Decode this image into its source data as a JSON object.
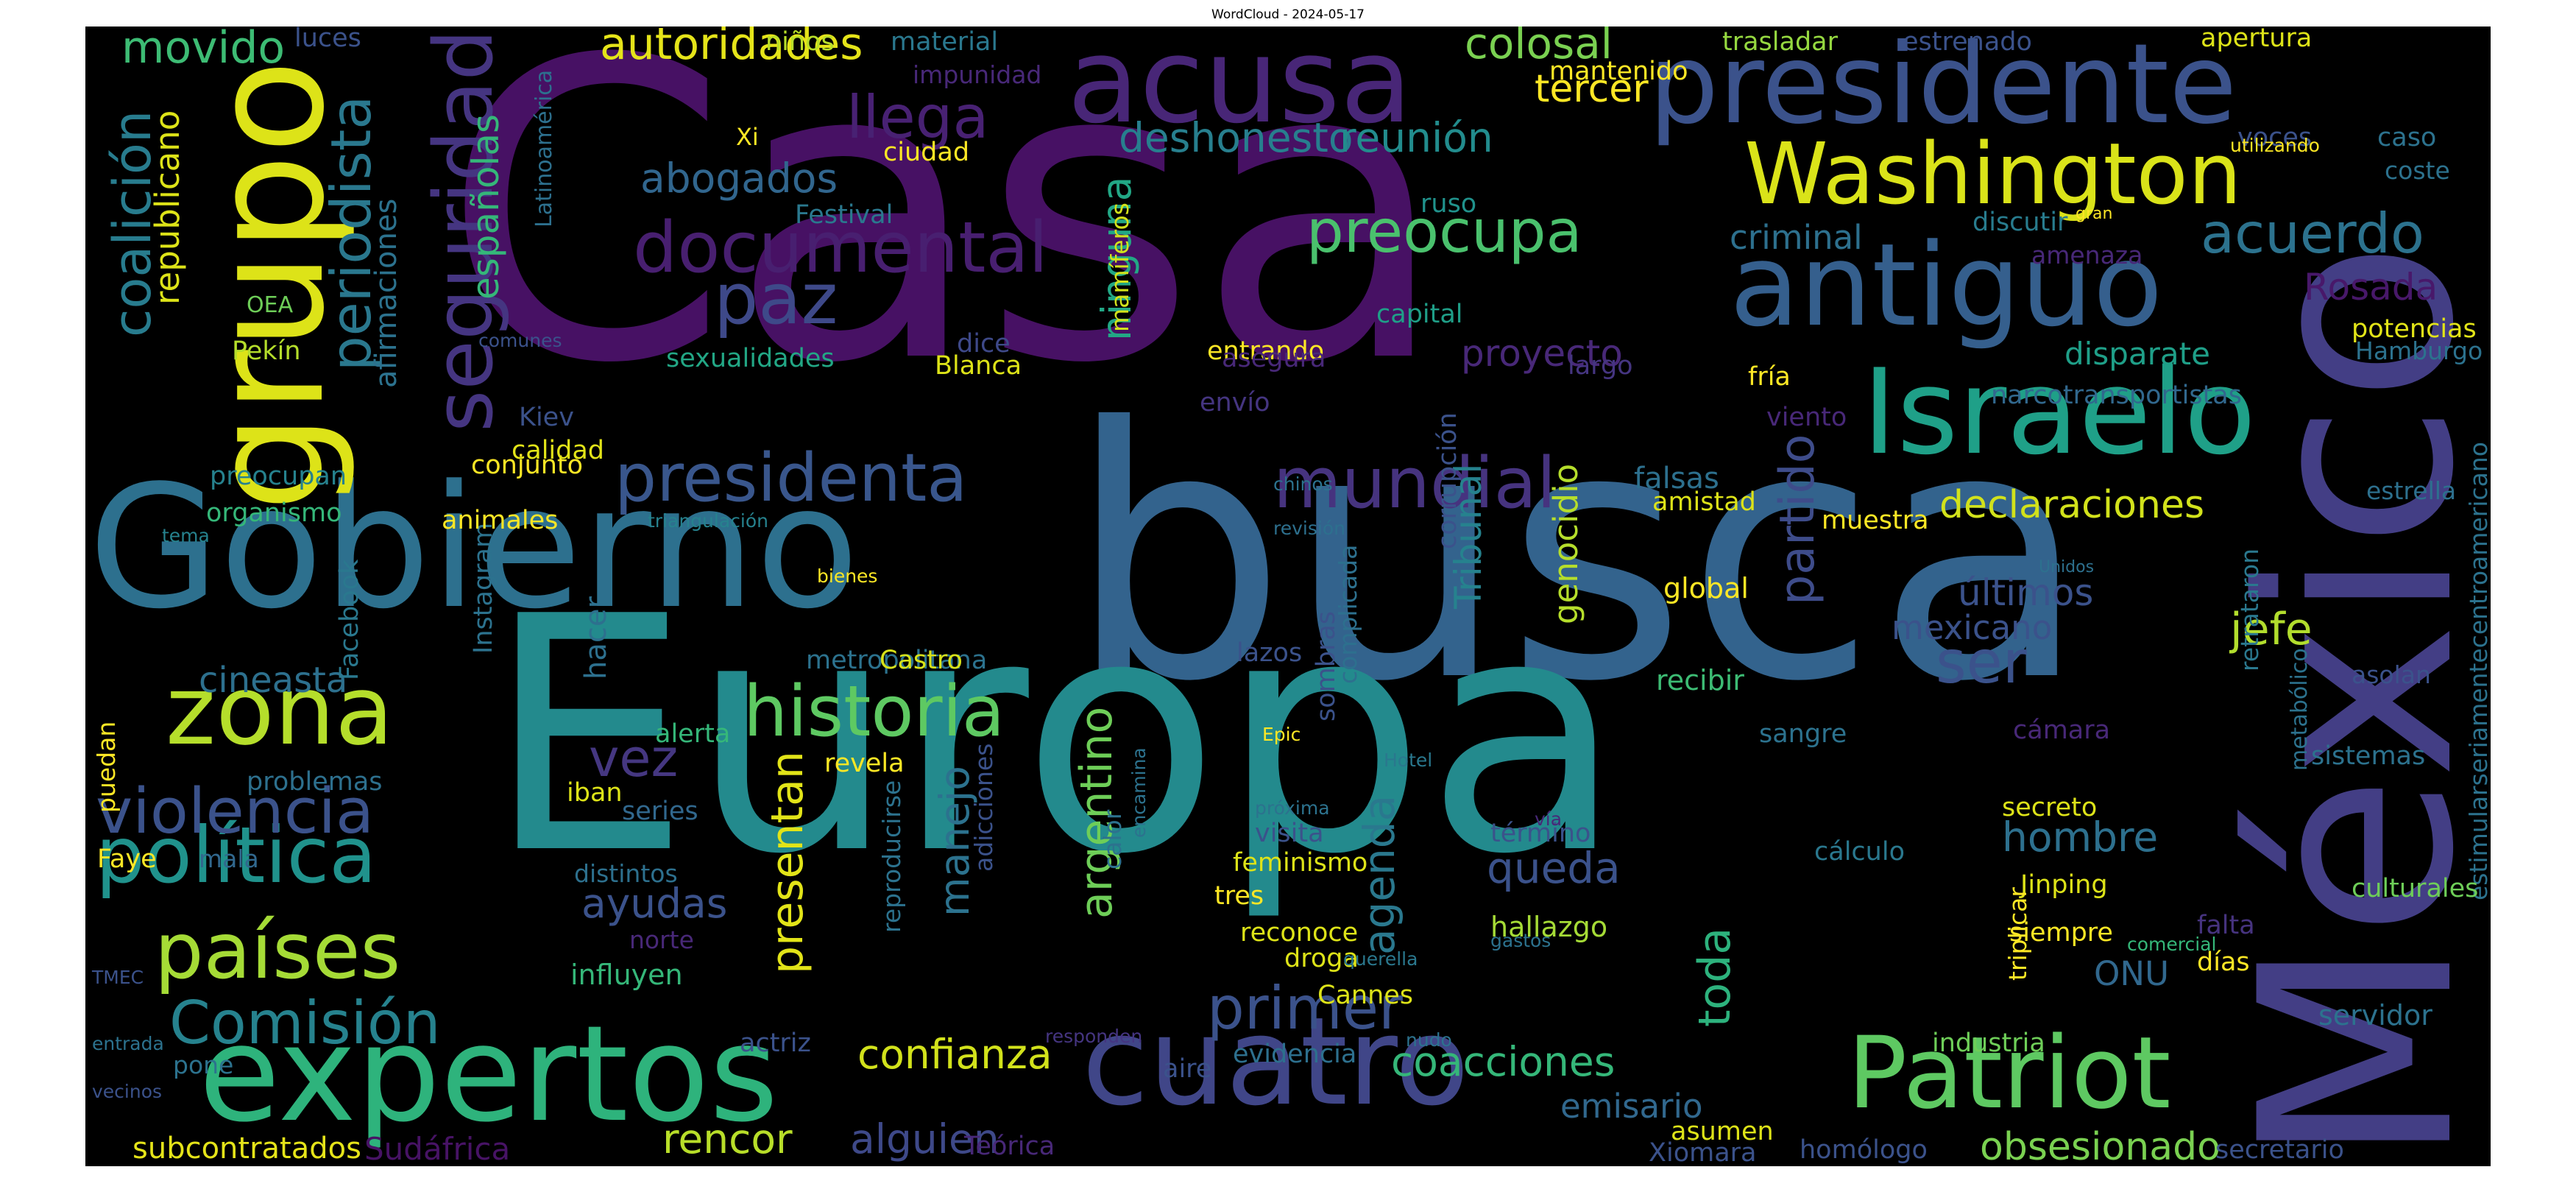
{
  "title": "WordCloud - 2024-05-17",
  "words": [
    {
      "text": "Casa",
      "color": "#471164"
    },
    {
      "text": "busca",
      "color": "#33638d"
    },
    {
      "text": "Europa",
      "color": "#238a8d"
    },
    {
      "text": "Gobierno",
      "color": "#2d708e"
    },
    {
      "text": "México",
      "color": "#433e85"
    },
    {
      "text": "presidente",
      "color": "#3b528b"
    },
    {
      "text": "acusa",
      "color": "#482677"
    },
    {
      "text": "grupo",
      "color": "#dde318"
    },
    {
      "text": "expertos",
      "color": "#2eb37c"
    },
    {
      "text": "cuatro",
      "color": "#404688"
    },
    {
      "text": "Patriot",
      "color": "#5ec962"
    },
    {
      "text": "antiguo",
      "color": "#355f8d"
    },
    {
      "text": "Israelo",
      "color": "#1fa088"
    },
    {
      "text": "Washington",
      "color": "#dae319"
    },
    {
      "text": "zona",
      "color": "#b5de2b"
    },
    {
      "text": "política",
      "color": "#20928c"
    },
    {
      "text": "violencia",
      "color": "#3b528b"
    },
    {
      "text": "países",
      "color": "#a5db36"
    },
    {
      "text": "Comisión",
      "color": "#26828e"
    },
    {
      "text": "presidenta",
      "color": "#39568c"
    },
    {
      "text": "seguridad",
      "color": "#453581"
    },
    {
      "text": "mundial",
      "color": "#46337f"
    },
    {
      "text": "historia",
      "color": "#5ec962"
    },
    {
      "text": "documental",
      "color": "#481f70"
    },
    {
      "text": "paz",
      "color": "#3e4989"
    },
    {
      "text": "periodista",
      "color": "#2a788e"
    },
    {
      "text": "coalición",
      "color": "#287c8e"
    },
    {
      "text": "preocupa",
      "color": "#4ac16d"
    },
    {
      "text": "acuerdo",
      "color": "#2c728e"
    },
    {
      "text": "llega",
      "color": "#482173"
    },
    {
      "text": "movido",
      "color": "#3dbc74"
    },
    {
      "text": "autoridades",
      "color": "#e5e419"
    },
    {
      "text": "colosal",
      "color": "#7ad151"
    },
    {
      "text": "tercer",
      "color": "#fde725"
    },
    {
      "text": "deshonesto",
      "color": "#277f8e"
    },
    {
      "text": "reunión",
      "color": "#228c8d"
    },
    {
      "text": "abogados",
      "color": "#31668e"
    },
    {
      "text": "declaraciones",
      "color": "#d2e21b"
    },
    {
      "text": "partido",
      "color": "#3e4c8a"
    },
    {
      "text": "últimos",
      "color": "#3b528b"
    },
    {
      "text": "ser",
      "color": "#3b528b"
    },
    {
      "text": "jefe",
      "color": "#b2dd2d"
    },
    {
      "text": "mexicano",
      "color": "#3b528b"
    },
    {
      "text": "Rosada",
      "color": "#48186a"
    },
    {
      "text": "proyecto",
      "color": "#482878"
    },
    {
      "text": "disparate",
      "color": "#1f9f88"
    },
    {
      "text": "criminal",
      "color": "#2d708e"
    },
    {
      "text": "republicano",
      "color": "#dde318"
    },
    {
      "text": "españolas",
      "color": "#35b779"
    },
    {
      "text": "afirmaciones",
      "color": "#2c728e"
    },
    {
      "text": "ninguna",
      "color": "#22a785"
    },
    {
      "text": "confianza",
      "color": "#d2e21b"
    },
    {
      "text": "alguien",
      "color": "#3e4989"
    },
    {
      "text": "rencor",
      "color": "#b8de29"
    },
    {
      "text": "primer",
      "color": "#3b528b"
    },
    {
      "text": "coacciones",
      "color": "#35b779"
    },
    {
      "text": "toda",
      "color": "#2db27d"
    },
    {
      "text": "agenda",
      "color": "#2a788e"
    },
    {
      "text": "queda",
      "color": "#3b528b"
    },
    {
      "text": "presentan",
      "color": "#e2e418"
    },
    {
      "text": "manejo",
      "color": "#2c728e"
    },
    {
      "text": "argentino",
      "color": "#6ece58"
    },
    {
      "text": "vez",
      "color": "#453781"
    },
    {
      "text": "cineasta",
      "color": "#2d708e"
    },
    {
      "text": "ayudas",
      "color": "#3b528b"
    },
    {
      "text": "hombre",
      "color": "#2d708e"
    },
    {
      "text": "obsesionado",
      "color": "#7ad151"
    },
    {
      "text": "emisario",
      "color": "#31688e"
    },
    {
      "text": "Sudáfrica",
      "color": "#471365"
    },
    {
      "text": "subcontratados",
      "color": "#e5e419"
    },
    {
      "text": "Tribunal",
      "color": "#26828e"
    },
    {
      "text": "genocidio",
      "color": "#b5de2b"
    },
    {
      "text": "falsas",
      "color": "#2d708e"
    },
    {
      "text": "amistad",
      "color": "#dde318"
    },
    {
      "text": "muestra",
      "color": "#fde725"
    },
    {
      "text": "global",
      "color": "#fde725"
    },
    {
      "text": "recibir",
      "color": "#3dbc74"
    },
    {
      "text": "hacer",
      "color": "#2d708e"
    },
    {
      "text": "metropolitana",
      "color": "#2c728e"
    },
    {
      "text": "Castro",
      "color": "#d8e219"
    },
    {
      "text": "lazos",
      "color": "#3b528b"
    },
    {
      "text": "sombras",
      "color": "#3b528b"
    },
    {
      "text": "complicada",
      "color": "#2d708e"
    },
    {
      "text": "Facebook",
      "color": "#2a788e"
    },
    {
      "text": "Instagram",
      "color": "#2c728e"
    },
    {
      "text": "animales",
      "color": "#fde725"
    },
    {
      "text": "conjunto",
      "color": "#fde725"
    },
    {
      "text": "calidad",
      "color": "#e2e418"
    },
    {
      "text": "preocupan",
      "color": "#26828e"
    },
    {
      "text": "organismo",
      "color": "#35b779"
    },
    {
      "text": "Kiev",
      "color": "#3b528b"
    },
    {
      "text": "Pekín",
      "color": "#b5de2b"
    },
    {
      "text": "OEA",
      "color": "#6ece58"
    },
    {
      "text": "sexualidades",
      "color": "#22a785"
    },
    {
      "text": "Blanca",
      "color": "#dde318"
    },
    {
      "text": "dice",
      "color": "#3e4989"
    },
    {
      "text": "entrando",
      "color": "#fde725"
    },
    {
      "text": "asegura",
      "color": "#482878"
    },
    {
      "text": "mamíferos",
      "color": "#d2e21b"
    },
    {
      "text": "capital",
      "color": "#1f9f88"
    },
    {
      "text": "ruso",
      "color": "#20928c"
    },
    {
      "text": "Festival",
      "color": "#2a788e"
    },
    {
      "text": "ciudad",
      "color": "#fde725"
    },
    {
      "text": "Latinoamérica",
      "color": "#2d708e"
    },
    {
      "text": "impunidad",
      "color": "#482878"
    },
    {
      "text": "material",
      "color": "#2a788e"
    },
    {
      "text": "niños",
      "color": "#b8de29"
    },
    {
      "text": "luces",
      "color": "#3b528b"
    },
    {
      "text": "Xi",
      "color": "#fde725"
    },
    {
      "text": "mantenido",
      "color": "#fde725"
    },
    {
      "text": "trasladar",
      "color": "#95d840"
    },
    {
      "text": "estrenado",
      "color": "#3b528b"
    },
    {
      "text": "apertura",
      "color": "#dde318"
    },
    {
      "text": "caso",
      "color": "#2c728e"
    },
    {
      "text": "coste",
      "color": "#2c728e"
    },
    {
      "text": "voces",
      "color": "#3b528b"
    },
    {
      "text": "utilizando",
      "color": "#fde725"
    },
    {
      "text": "discutir",
      "color": "#287c8e"
    },
    {
      "text": "gran",
      "color": "#fde725"
    },
    {
      "text": "amenaza",
      "color": "#482878"
    },
    {
      "text": "potencias",
      "color": "#e2e418"
    },
    {
      "text": "Hamburgo",
      "color": "#2c728e"
    },
    {
      "text": "fría",
      "color": "#fde725"
    },
    {
      "text": "narcotransportistas",
      "color": "#31688e"
    },
    {
      "text": "viento",
      "color": "#482878"
    },
    {
      "text": "corrupción",
      "color": "#3b528b"
    },
    {
      "text": "largo",
      "color": "#453581"
    },
    {
      "text": "envío",
      "color": "#453581"
    },
    {
      "text": "chinos",
      "color": "#2c728e"
    },
    {
      "text": "revisión",
      "color": "#2d708e"
    },
    {
      "text": "triangulación",
      "color": "#26828e"
    },
    {
      "text": "bienes",
      "color": "#fde725"
    },
    {
      "text": "tema",
      "color": "#26828e"
    },
    {
      "text": "comunes",
      "color": "#3b528b"
    },
    {
      "text": "estrella",
      "color": "#2d708e"
    },
    {
      "text": "estimularseriamentecentroamericano",
      "color": "#2c728e"
    },
    {
      "text": "retrataron",
      "color": "#2a788e"
    },
    {
      "text": "asolan",
      "color": "#3b528b"
    },
    {
      "text": "Unidos",
      "color": "#2d708e"
    },
    {
      "text": "metabólico",
      "color": "#2c728e"
    },
    {
      "text": "sistemas",
      "color": "#2c728e"
    },
    {
      "text": "cámara",
      "color": "#482878"
    },
    {
      "text": "sangre",
      "color": "#2c728e"
    },
    {
      "text": "secreto",
      "color": "#dde318"
    },
    {
      "text": "cálculo",
      "color": "#2a788e"
    },
    {
      "text": "culturales",
      "color": "#6ece58"
    },
    {
      "text": "Jinping",
      "color": "#dde318"
    },
    {
      "text": "siempre",
      "color": "#fde725"
    },
    {
      "text": "triplicar",
      "color": "#fde725"
    },
    {
      "text": "falta",
      "color": "#46337f"
    },
    {
      "text": "comercial",
      "color": "#35b779"
    },
    {
      "text": "días",
      "color": "#fde725"
    },
    {
      "text": "ONU",
      "color": "#31688e"
    },
    {
      "text": "servidor",
      "color": "#2c728e"
    },
    {
      "text": "industria",
      "color": "#6ece58"
    },
    {
      "text": "asumen",
      "color": "#dde318"
    },
    {
      "text": "Xiomara",
      "color": "#3b528b"
    },
    {
      "text": "homólogo",
      "color": "#3b528b"
    },
    {
      "text": "secretario",
      "color": "#3b528b"
    },
    {
      "text": "hallazgo",
      "color": "#a5db36"
    },
    {
      "text": "gastos",
      "color": "#2c728e"
    },
    {
      "text": "término",
      "color": "#3b528b"
    },
    {
      "text": "vía",
      "color": "#482878"
    },
    {
      "text": "Hotel",
      "color": "#2a788e"
    },
    {
      "text": "encamina",
      "color": "#2c728e"
    },
    {
      "text": "próxima",
      "color": "#2c728e"
    },
    {
      "text": "visita",
      "color": "#3b528b"
    },
    {
      "text": "feminismo",
      "color": "#dde318"
    },
    {
      "text": "tres",
      "color": "#fde725"
    },
    {
      "text": "reconoce",
      "color": "#dde318"
    },
    {
      "text": "droga",
      "color": "#dde318"
    },
    {
      "text": "querella",
      "color": "#2a788e"
    },
    {
      "text": "Cannes",
      "color": "#dde318"
    },
    {
      "text": "evidencia",
      "color": "#2d708e"
    },
    {
      "text": "nudo",
      "color": "#2c728e"
    },
    {
      "text": "aire",
      "color": "#3b528b"
    },
    {
      "text": "responden",
      "color": "#453581"
    },
    {
      "text": "Epic",
      "color": "#fde725"
    },
    {
      "text": "alerta",
      "color": "#35b779"
    },
    {
      "text": "iban",
      "color": "#dde318"
    },
    {
      "text": "series",
      "color": "#31688e"
    },
    {
      "text": "revela",
      "color": "#fde725"
    },
    {
      "text": "reproducirse",
      "color": "#2c728e"
    },
    {
      "text": "adicciones",
      "color": "#3b528b"
    },
    {
      "text": "calor",
      "color": "#2c728e"
    },
    {
      "text": "distintos",
      "color": "#2d708e"
    },
    {
      "text": "norte",
      "color": "#482878"
    },
    {
      "text": "influyen",
      "color": "#35b779"
    },
    {
      "text": "actriz",
      "color": "#3b528b"
    },
    {
      "text": "Teórica",
      "color": "#482878"
    },
    {
      "text": "problemas",
      "color": "#2d708e"
    },
    {
      "text": "puedan",
      "color": "#fde725"
    },
    {
      "text": "Faye",
      "color": "#fde725"
    },
    {
      "text": "mala",
      "color": "#31688e"
    },
    {
      "text": "TMEC",
      "color": "#3b528b"
    },
    {
      "text": "entrada",
      "color": "#2c728e"
    },
    {
      "text": "pone",
      "color": "#2c728e"
    },
    {
      "text": "vecinos",
      "color": "#3b528b"
    }
  ]
}
